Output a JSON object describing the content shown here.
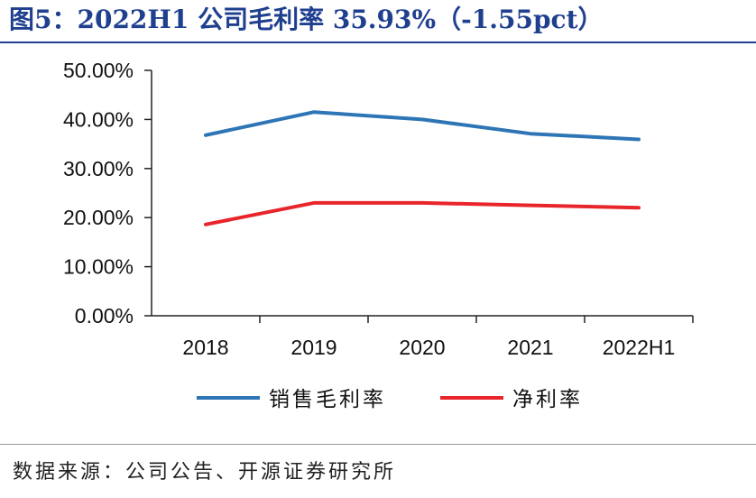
{
  "title": "图5：2022H1 公司毛利率 35.93%（-1.55pct）",
  "source": "数据来源：公司公告、开源证券研究所",
  "chart_data": {
    "type": "line",
    "categories": [
      "2018",
      "2019",
      "2020",
      "2021",
      "2022H1"
    ],
    "ylim": [
      0,
      50
    ],
    "yticks": [
      "0.00%",
      "10.00%",
      "20.00%",
      "30.00%",
      "40.00%",
      "50.00%"
    ],
    "legend_position": "bottom",
    "grid": false,
    "series": [
      {
        "name": "销售毛利率",
        "color": "#2e75b6",
        "values": [
          36.8,
          41.5,
          40.0,
          37.1,
          35.93
        ]
      },
      {
        "name": "净利率",
        "color": "#e8252b",
        "values": [
          18.6,
          23.0,
          23.0,
          22.5,
          22.0
        ]
      }
    ]
  }
}
